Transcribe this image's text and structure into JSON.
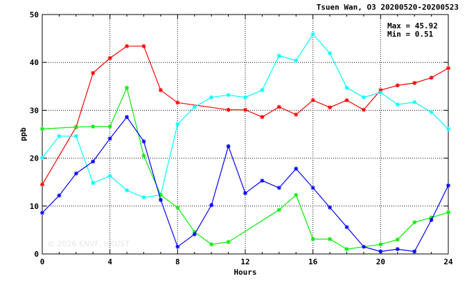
{
  "chart_data": {
    "type": "line",
    "title": "Tsuen Wan, O3 20200520-20200523",
    "xlabel": "Hours",
    "ylabel": "ppb",
    "xlim": [
      0,
      24
    ],
    "ylim": [
      0,
      50
    ],
    "xticks": [
      "0",
      "4",
      "8",
      "12",
      "16",
      "20",
      "24"
    ],
    "yticks": [
      "0",
      "10",
      "20",
      "30",
      "40",
      "50"
    ],
    "grid": true,
    "max_label": "Max = 45.92",
    "min_label": "Min =  0.51",
    "watermark": "© 2026 ENVF, HKUST",
    "series": [
      {
        "color": "#ff0000",
        "x": [
          0,
          2,
          3,
          4,
          5,
          6,
          7,
          8,
          11,
          12,
          13,
          14,
          15,
          16,
          17,
          18,
          19,
          20,
          21,
          22,
          23,
          24
        ],
        "values": [
          14.5,
          26.5,
          37.8,
          40.9,
          43.4,
          43.4,
          34.2,
          31.6,
          30.1,
          30.1,
          28.6,
          30.7,
          29.1,
          32.1,
          30.6,
          32.1,
          30.1,
          34.2,
          35.2,
          35.7,
          36.8,
          38.8
        ]
      },
      {
        "color": "#00ffff",
        "x": [
          0,
          1,
          2,
          3,
          4,
          5,
          6,
          7,
          8,
          9,
          10,
          11,
          12,
          13,
          14,
          15,
          16,
          17,
          18,
          19,
          20,
          21,
          22,
          23,
          24
        ],
        "values": [
          20.1,
          24.6,
          24.6,
          14.8,
          16.3,
          13.3,
          11.8,
          12.3,
          27.1,
          30.7,
          32.7,
          33.2,
          32.7,
          34.2,
          41.4,
          40.4,
          45.9,
          41.9,
          34.7,
          32.7,
          33.7,
          31.2,
          31.7,
          29.6,
          26.1
        ]
      },
      {
        "color": "#00ee00",
        "x": [
          0,
          2,
          3,
          4,
          5,
          6,
          7,
          8,
          9,
          10,
          11,
          14,
          15,
          16,
          17,
          18,
          20,
          21,
          22,
          23,
          24
        ],
        "values": [
          26.1,
          26.5,
          26.6,
          26.6,
          34.7,
          20.5,
          12.3,
          9.7,
          4.6,
          2.0,
          2.5,
          9.2,
          12.3,
          3.1,
          3.1,
          1.0,
          2.0,
          3.0,
          6.6,
          7.6,
          8.7
        ]
      },
      {
        "color": "#0000ff",
        "x": [
          0,
          1,
          2,
          3,
          4,
          5,
          6,
          7,
          8,
          9,
          10,
          11,
          12,
          13,
          14,
          15,
          16,
          17,
          18,
          19,
          20,
          21,
          22,
          23,
          24
        ],
        "values": [
          8.6,
          12.2,
          16.8,
          19.3,
          24.1,
          28.6,
          23.5,
          11.3,
          1.5,
          4.1,
          10.2,
          22.5,
          12.7,
          15.3,
          13.8,
          17.8,
          13.8,
          9.7,
          5.6,
          1.5,
          0.5,
          1.0,
          0.5,
          7.1,
          14.3
        ]
      }
    ]
  }
}
